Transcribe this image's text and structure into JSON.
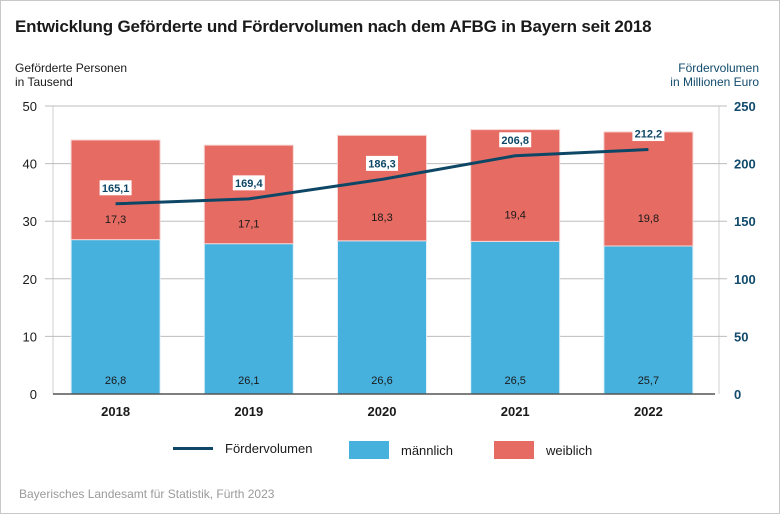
{
  "title": "Entwicklung Geförderte und Fördervolumen nach dem AFBG in Bayern seit 2018",
  "source": "Bayerisches Landesamt für Statistik, Fürth 2023",
  "colors": {
    "male": "#47b1de",
    "female": "#e56b63",
    "line": "#0e4766",
    "right_axis": "#114a6b"
  },
  "chart_data": {
    "type": "bar",
    "stacked": true,
    "title": "Entwicklung Geförderte und Fördervolumen nach dem AFBG in Bayern seit 2018",
    "categories": [
      "2018",
      "2019",
      "2020",
      "2021",
      "2022"
    ],
    "ylabel_left": [
      "Geförderte Personen",
      "in Tausend"
    ],
    "ylabel_right": [
      "Fördervolumen",
      "in Millionen Euro"
    ],
    "ylim_left": [
      0,
      50
    ],
    "ylim_right": [
      0,
      250
    ],
    "yticks_left": [
      "0",
      "10",
      "20",
      "30",
      "40",
      "50"
    ],
    "yticks_right": [
      "0",
      "50",
      "100",
      "150",
      "200",
      "250"
    ],
    "grid": true,
    "legend_position": "bottom",
    "series": [
      {
        "name": "männlich",
        "type": "bar",
        "axis": "left",
        "values": [
          26.8,
          26.1,
          26.6,
          26.5,
          25.7
        ],
        "labels": [
          "26,8",
          "26,1",
          "26,6",
          "26,5",
          "25,7"
        ]
      },
      {
        "name": "weiblich",
        "type": "bar",
        "axis": "left",
        "values": [
          17.3,
          17.1,
          18.3,
          19.4,
          19.8
        ],
        "labels": [
          "17,3",
          "17,1",
          "18,3",
          "19,4",
          "19,8"
        ]
      },
      {
        "name": "Fördervolumen",
        "type": "line",
        "axis": "right",
        "values": [
          165.1,
          169.4,
          186.3,
          206.8,
          212.2
        ],
        "labels": [
          "165,1",
          "169,4",
          "186,3",
          "206,8",
          "212,2"
        ]
      }
    ],
    "legend": [
      "Fördervolumen",
      "männlich",
      "weiblich"
    ]
  }
}
